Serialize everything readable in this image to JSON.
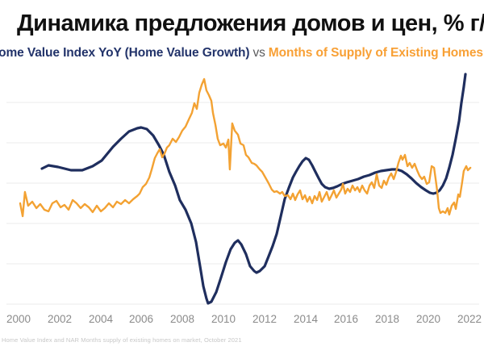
{
  "title": "Динамика предложения домов и цен, % г/г",
  "subtitle": {
    "series1_label": "Home Value Index YoY (Home Value Growth)",
    "separator": "vs",
    "series2_label": "Months of Supply of Existing Homes"
  },
  "footnote": "Home Value Index and NAR Months supply of existing homes on market, October 2021",
  "colors": {
    "home_value_line": "#1f2e5e",
    "supply_line": "#f3a233",
    "title_text": "#101010",
    "subtitle_navy": "#22336a",
    "subtitle_orange": "#f8a035",
    "axis_label_grey": "#8b8b8b",
    "gridline": "#efefef"
  },
  "chart_data": {
    "type": "line",
    "title": "Динамика предложения домов и цен, % г/г",
    "xlabel": "",
    "ylabel": "",
    "x_ticks": [
      2000,
      2002,
      2004,
      2006,
      2008,
      2010,
      2012,
      2014,
      2016,
      2018,
      2020,
      2022
    ],
    "x_range": [
      1999.7,
      2022.7
    ],
    "grid": "horizontal-only",
    "legend_position": "subtitle-inline",
    "y_axis_labels_visible": false,
    "note": "No y-axis tick labels are shown in the image; values below are estimated from line positions. Series 1 in % y/y (left scale), series 2 in months of supply (unlabeled right scale).",
    "series": [
      {
        "name": "Home Value Index YoY (Home Value Growth)",
        "color": "#1f2e5e",
        "unit": "% y/y",
        "points": [
          [
            2001.14,
            6.8
          ],
          [
            2001.46,
            7.2
          ],
          [
            2001.93,
            7.0
          ],
          [
            2002.56,
            6.6
          ],
          [
            2003.11,
            6.6
          ],
          [
            2003.62,
            7.1
          ],
          [
            2004.06,
            7.8
          ],
          [
            2004.61,
            9.5
          ],
          [
            2005.0,
            10.5
          ],
          [
            2005.39,
            11.4
          ],
          [
            2005.79,
            11.8
          ],
          [
            2005.98,
            11.9
          ],
          [
            2006.26,
            11.7
          ],
          [
            2006.57,
            10.9
          ],
          [
            2006.85,
            9.7
          ],
          [
            2007.09,
            8.5
          ],
          [
            2007.36,
            6.4
          ],
          [
            2007.64,
            4.7
          ],
          [
            2007.87,
            2.9
          ],
          [
            2008.15,
            1.7
          ],
          [
            2008.43,
            0.0
          ],
          [
            2008.66,
            -2.3
          ],
          [
            2008.86,
            -5.3
          ],
          [
            2009.02,
            -7.8
          ],
          [
            2009.17,
            -9.3
          ],
          [
            2009.25,
            -9.9
          ],
          [
            2009.41,
            -9.7
          ],
          [
            2009.65,
            -8.5
          ],
          [
            2009.88,
            -6.7
          ],
          [
            2010.12,
            -4.8
          ],
          [
            2010.35,
            -3.2
          ],
          [
            2010.55,
            -2.4
          ],
          [
            2010.71,
            -2.1
          ],
          [
            2010.87,
            -2.6
          ],
          [
            2011.1,
            -3.8
          ],
          [
            2011.3,
            -5.3
          ],
          [
            2011.5,
            -5.9
          ],
          [
            2011.61,
            -6.1
          ],
          [
            2011.77,
            -5.9
          ],
          [
            2012.01,
            -5.3
          ],
          [
            2012.2,
            -4.1
          ],
          [
            2012.4,
            -2.8
          ],
          [
            2012.6,
            -1.3
          ],
          [
            2012.8,
            0.9
          ],
          [
            2012.99,
            3.0
          ],
          [
            2013.19,
            4.4
          ],
          [
            2013.39,
            5.7
          ],
          [
            2013.54,
            6.4
          ],
          [
            2013.7,
            7.1
          ],
          [
            2013.86,
            7.7
          ],
          [
            2014.02,
            8.1
          ],
          [
            2014.17,
            7.9
          ],
          [
            2014.33,
            7.2
          ],
          [
            2014.49,
            6.4
          ],
          [
            2014.65,
            5.6
          ],
          [
            2014.8,
            4.9
          ],
          [
            2014.96,
            4.5
          ],
          [
            2015.16,
            4.3
          ],
          [
            2015.35,
            4.4
          ],
          [
            2015.55,
            4.6
          ],
          [
            2015.79,
            4.9
          ],
          [
            2016.02,
            5.1
          ],
          [
            2016.3,
            5.3
          ],
          [
            2016.57,
            5.5
          ],
          [
            2016.85,
            5.8
          ],
          [
            2017.13,
            6.0
          ],
          [
            2017.4,
            6.3
          ],
          [
            2017.68,
            6.5
          ],
          [
            2017.95,
            6.6
          ],
          [
            2018.23,
            6.7
          ],
          [
            2018.46,
            6.7
          ],
          [
            2018.7,
            6.5
          ],
          [
            2018.94,
            6.1
          ],
          [
            2019.17,
            5.6
          ],
          [
            2019.41,
            5.0
          ],
          [
            2019.65,
            4.5
          ],
          [
            2019.88,
            4.1
          ],
          [
            2020.08,
            3.8
          ],
          [
            2020.24,
            3.7
          ],
          [
            2020.39,
            3.8
          ],
          [
            2020.55,
            4.1
          ],
          [
            2020.71,
            4.7
          ],
          [
            2020.87,
            5.6
          ],
          [
            2021.02,
            6.9
          ],
          [
            2021.18,
            8.5
          ],
          [
            2021.34,
            10.5
          ],
          [
            2021.5,
            12.7
          ],
          [
            2021.61,
            14.9
          ],
          [
            2021.73,
            16.9
          ],
          [
            2021.81,
            18.5
          ]
        ]
      },
      {
        "name": "Months of Supply of Existing Homes",
        "color": "#f3a233",
        "unit": "months (estimated scale)",
        "points": [
          [
            2000.08,
            5.0
          ],
          [
            2000.2,
            4.36
          ],
          [
            2000.31,
            5.56
          ],
          [
            2000.47,
            4.88
          ],
          [
            2000.67,
            5.08
          ],
          [
            2000.87,
            4.76
          ],
          [
            2001.06,
            4.96
          ],
          [
            2001.26,
            4.68
          ],
          [
            2001.46,
            4.6
          ],
          [
            2001.65,
            5.0
          ],
          [
            2001.85,
            5.12
          ],
          [
            2002.05,
            4.8
          ],
          [
            2002.24,
            4.92
          ],
          [
            2002.44,
            4.68
          ],
          [
            2002.64,
            5.16
          ],
          [
            2002.83,
            5.0
          ],
          [
            2003.03,
            4.76
          ],
          [
            2003.23,
            4.96
          ],
          [
            2003.43,
            4.8
          ],
          [
            2003.62,
            4.56
          ],
          [
            2003.82,
            4.88
          ],
          [
            2004.02,
            4.6
          ],
          [
            2004.21,
            4.76
          ],
          [
            2004.41,
            5.0
          ],
          [
            2004.61,
            4.8
          ],
          [
            2004.8,
            5.08
          ],
          [
            2005.0,
            4.96
          ],
          [
            2005.2,
            5.16
          ],
          [
            2005.39,
            5.0
          ],
          [
            2005.59,
            5.2
          ],
          [
            2005.79,
            5.36
          ],
          [
            2005.91,
            5.48
          ],
          [
            2006.06,
            5.8
          ],
          [
            2006.22,
            5.96
          ],
          [
            2006.38,
            6.28
          ],
          [
            2006.5,
            6.68
          ],
          [
            2006.65,
            7.24
          ],
          [
            2006.77,
            7.48
          ],
          [
            2006.89,
            7.68
          ],
          [
            2007.01,
            7.28
          ],
          [
            2007.13,
            7.48
          ],
          [
            2007.24,
            7.76
          ],
          [
            2007.36,
            7.88
          ],
          [
            2007.52,
            8.2
          ],
          [
            2007.68,
            8.04
          ],
          [
            2007.83,
            8.28
          ],
          [
            2007.99,
            8.6
          ],
          [
            2008.15,
            8.8
          ],
          [
            2008.31,
            9.16
          ],
          [
            2008.46,
            9.48
          ],
          [
            2008.58,
            9.96
          ],
          [
            2008.7,
            9.68
          ],
          [
            2008.82,
            10.48
          ],
          [
            2008.94,
            10.88
          ],
          [
            2009.06,
            11.16
          ],
          [
            2009.17,
            10.6
          ],
          [
            2009.29,
            10.36
          ],
          [
            2009.41,
            10.08
          ],
          [
            2009.49,
            9.48
          ],
          [
            2009.61,
            8.88
          ],
          [
            2009.72,
            8.2
          ],
          [
            2009.84,
            7.88
          ],
          [
            2010.0,
            7.96
          ],
          [
            2010.12,
            7.76
          ],
          [
            2010.24,
            8.16
          ],
          [
            2010.31,
            6.68
          ],
          [
            2010.43,
            8.96
          ],
          [
            2010.55,
            8.6
          ],
          [
            2010.71,
            8.4
          ],
          [
            2010.83,
            7.96
          ],
          [
            2010.98,
            7.88
          ],
          [
            2011.1,
            7.4
          ],
          [
            2011.22,
            7.28
          ],
          [
            2011.38,
            7.0
          ],
          [
            2011.5,
            6.96
          ],
          [
            2011.61,
            6.88
          ],
          [
            2011.77,
            6.68
          ],
          [
            2011.89,
            6.56
          ],
          [
            2012.09,
            6.2
          ],
          [
            2012.2,
            6.0
          ],
          [
            2012.36,
            5.68
          ],
          [
            2012.48,
            5.56
          ],
          [
            2012.6,
            5.6
          ],
          [
            2012.76,
            5.48
          ],
          [
            2012.87,
            5.56
          ],
          [
            2012.99,
            5.36
          ],
          [
            2013.15,
            5.4
          ],
          [
            2013.27,
            5.2
          ],
          [
            2013.39,
            5.48
          ],
          [
            2013.5,
            5.16
          ],
          [
            2013.62,
            5.44
          ],
          [
            2013.74,
            5.64
          ],
          [
            2013.86,
            5.2
          ],
          [
            2013.98,
            5.4
          ],
          [
            2014.09,
            5.08
          ],
          [
            2014.21,
            5.32
          ],
          [
            2014.33,
            5.0
          ],
          [
            2014.45,
            5.36
          ],
          [
            2014.57,
            5.16
          ],
          [
            2014.69,
            5.56
          ],
          [
            2014.8,
            5.08
          ],
          [
            2014.92,
            5.32
          ],
          [
            2015.04,
            5.56
          ],
          [
            2015.16,
            5.16
          ],
          [
            2015.28,
            5.4
          ],
          [
            2015.39,
            5.64
          ],
          [
            2015.51,
            5.28
          ],
          [
            2015.63,
            5.48
          ],
          [
            2015.75,
            5.68
          ],
          [
            2015.83,
            5.96
          ],
          [
            2015.94,
            5.48
          ],
          [
            2016.06,
            5.72
          ],
          [
            2016.18,
            5.56
          ],
          [
            2016.3,
            5.88
          ],
          [
            2016.42,
            5.64
          ],
          [
            2016.54,
            5.8
          ],
          [
            2016.65,
            5.56
          ],
          [
            2016.77,
            5.88
          ],
          [
            2016.89,
            5.64
          ],
          [
            2017.01,
            5.48
          ],
          [
            2017.13,
            5.88
          ],
          [
            2017.24,
            6.04
          ],
          [
            2017.36,
            5.76
          ],
          [
            2017.48,
            6.44
          ],
          [
            2017.6,
            5.88
          ],
          [
            2017.72,
            5.76
          ],
          [
            2017.83,
            6.12
          ],
          [
            2017.95,
            5.92
          ],
          [
            2018.07,
            6.28
          ],
          [
            2018.19,
            6.48
          ],
          [
            2018.31,
            6.2
          ],
          [
            2018.43,
            6.56
          ],
          [
            2018.54,
            7.0
          ],
          [
            2018.66,
            7.36
          ],
          [
            2018.74,
            7.16
          ],
          [
            2018.86,
            7.4
          ],
          [
            2018.98,
            6.84
          ],
          [
            2019.09,
            7.0
          ],
          [
            2019.21,
            6.76
          ],
          [
            2019.33,
            6.96
          ],
          [
            2019.45,
            6.64
          ],
          [
            2019.57,
            6.36
          ],
          [
            2019.69,
            6.2
          ],
          [
            2019.8,
            6.32
          ],
          [
            2019.92,
            5.96
          ],
          [
            2020.04,
            6.04
          ],
          [
            2020.16,
            6.84
          ],
          [
            2020.28,
            6.76
          ],
          [
            2020.35,
            6.24
          ],
          [
            2020.43,
            5.64
          ],
          [
            2020.51,
            4.76
          ],
          [
            2020.59,
            4.52
          ],
          [
            2020.71,
            4.6
          ],
          [
            2020.83,
            4.52
          ],
          [
            2020.94,
            4.76
          ],
          [
            2021.02,
            4.44
          ],
          [
            2021.14,
            4.88
          ],
          [
            2021.26,
            5.04
          ],
          [
            2021.34,
            4.72
          ],
          [
            2021.46,
            5.44
          ],
          [
            2021.54,
            5.32
          ],
          [
            2021.65,
            6.04
          ],
          [
            2021.73,
            6.6
          ],
          [
            2021.85,
            6.84
          ],
          [
            2021.93,
            6.64
          ],
          [
            2022.05,
            6.76
          ]
        ]
      }
    ]
  }
}
